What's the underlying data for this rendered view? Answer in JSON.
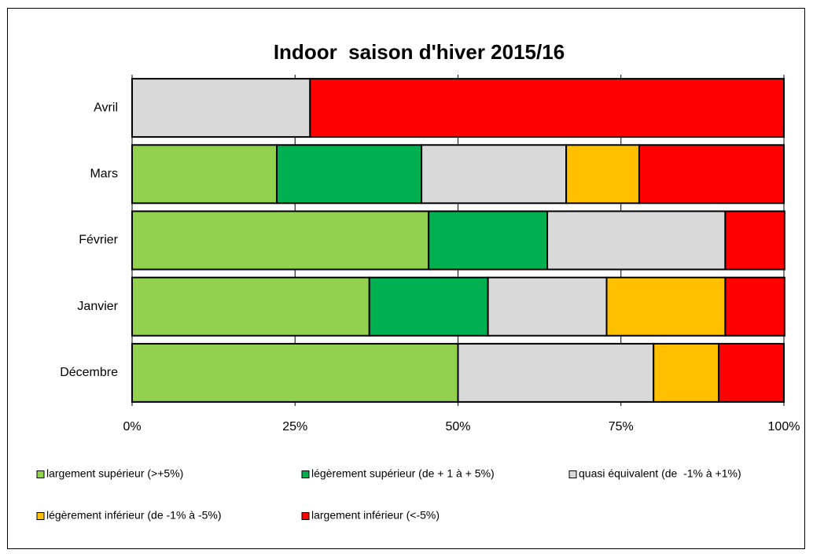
{
  "chart_data": {
    "type": "stacked_barh",
    "title": "Indoor  saison d'hiver 2015/16",
    "categories": [
      "Avril",
      "Mars",
      "Février",
      "Janvier",
      "Décembre"
    ],
    "series": [
      {
        "name": "largement supérieur (>+5%)",
        "color": "#92d050",
        "values": [
          0,
          22.2,
          45.5,
          36.4,
          50
        ]
      },
      {
        "name": "légèrement supérieur (de + 1 à + 5%)",
        "color": "#00b050",
        "values": [
          0,
          22.2,
          18.2,
          18.2,
          0
        ]
      },
      {
        "name": "quasi équivalent (de  -1% à +1%)",
        "color": "#d9d9d9",
        "values": [
          27.3,
          22.2,
          27.3,
          18.2,
          30
        ]
      },
      {
        "name": "légèrement inférieur (de -1% à -5%)",
        "color": "#ffc000",
        "values": [
          0,
          11.2,
          0,
          18.2,
          10
        ]
      },
      {
        "name": "largement inférieur (<-5%)",
        "color": "#ff0000",
        "values": [
          72.7,
          22.2,
          9.1,
          9.1,
          10
        ]
      }
    ],
    "xlim": [
      0,
      100
    ],
    "xticks": [
      {
        "value": 0,
        "label": "0%"
      },
      {
        "value": 25,
        "label": "25%"
      },
      {
        "value": 50,
        "label": "50%"
      },
      {
        "value": 75,
        "label": "75%"
      },
      {
        "value": 100,
        "label": "100%"
      }
    ],
    "grid": true
  }
}
